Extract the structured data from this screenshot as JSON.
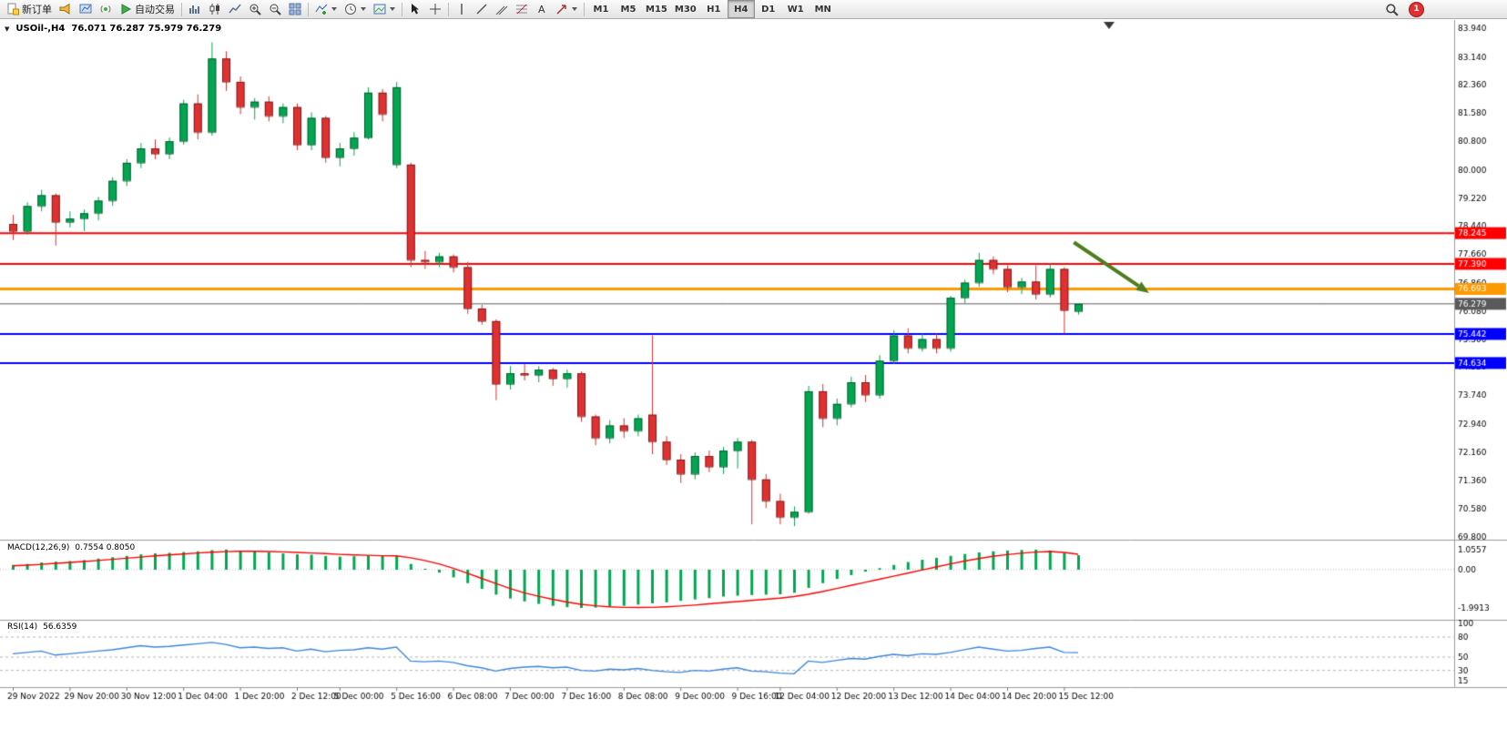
{
  "toolbar": {
    "new_order_label": "新订单",
    "autotrading_label": "自动交易",
    "timeframes": [
      "M1",
      "M5",
      "M15",
      "M30",
      "H1",
      "H4",
      "D1",
      "W1",
      "MN"
    ],
    "active_timeframe": "H4",
    "notification_count": "1",
    "icon_names": [
      "new-order-icon",
      "announcement-icon",
      "market-watch-icon",
      "signal-icon",
      "autotrading-play-icon",
      "bar-chart-icon",
      "candlestick-chart-icon",
      "line-chart-icon",
      "zoom-in-icon",
      "zoom-out-icon",
      "tile-windows-icon",
      "indicators-icon",
      "periods-icon",
      "templates-icon",
      "cursor-icon",
      "crosshair-icon",
      "vertical-line-icon",
      "trendline-icon",
      "channel-icon",
      "fibonacci-icon",
      "text-tool-icon",
      "arrows-icon",
      "search-icon",
      "notification-badge"
    ]
  },
  "chart_header": {
    "collapse_glyph": "▼",
    "symbol_period": "USOil-,H4",
    "ohlc": "76.071 76.287 75.979 76.279"
  },
  "indicator_labels": {
    "macd": "MACD(12,26,9)",
    "macd_values": "0.7554 0.8050",
    "rsi": "RSI(14)",
    "rsi_value": "56.6359"
  },
  "chart_data": [
    {
      "type": "candlestick",
      "symbol": "USOil-",
      "timeframe": "H4",
      "current_bar": {
        "open": 76.071,
        "high": 76.287,
        "low": 75.979,
        "close": 76.279
      },
      "ylim": [
        69.8,
        83.94
      ],
      "y_ticks": [
        "83.940",
        "83.140",
        "82.360",
        "81.580",
        "80.800",
        "80.000",
        "79.220",
        "78.440",
        "77.660",
        "76.860",
        "76.080",
        "75.300",
        "74.520",
        "73.740",
        "72.940",
        "72.160",
        "71.360",
        "70.580",
        "69.800"
      ],
      "x_labels": [
        {
          "i": 0,
          "label": "29 Nov 2022"
        },
        {
          "i": 4,
          "label": "29 Nov 20:00"
        },
        {
          "i": 8,
          "label": "30 Nov 12:00"
        },
        {
          "i": 12,
          "label": "1 Dec 04:00"
        },
        {
          "i": 16,
          "label": "1 Dec 20:00"
        },
        {
          "i": 20,
          "label": "2 Dec 12:00"
        },
        {
          "i": 23,
          "label": "5 Dec 00:00"
        },
        {
          "i": 27,
          "label": "5 Dec 16:00"
        },
        {
          "i": 31,
          "label": "6 Dec 08:00"
        },
        {
          "i": 35,
          "label": "7 Dec 00:00"
        },
        {
          "i": 39,
          "label": "7 Dec 16:00"
        },
        {
          "i": 43,
          "label": "8 Dec 08:00"
        },
        {
          "i": 47,
          "label": "9 Dec 00:00"
        },
        {
          "i": 51,
          "label": "9 Dec 16:00"
        },
        {
          "i": 54,
          "label": "12 Dec 04:00"
        },
        {
          "i": 58,
          "label": "12 Dec 20:00"
        },
        {
          "i": 62,
          "label": "13 Dec 12:00"
        },
        {
          "i": 66,
          "label": "14 Dec 04:00"
        },
        {
          "i": 70,
          "label": "14 Dec 20:00"
        },
        {
          "i": 74,
          "label": "15 Dec 12:00"
        }
      ],
      "up_color": "#00a651",
      "down_color": "#e13030",
      "hlines": [
        {
          "price": 78.245,
          "color": "#ff0000",
          "width": 2,
          "label": "78.245"
        },
        {
          "price": 77.39,
          "color": "#ff0000",
          "width": 2,
          "label": "77.390"
        },
        {
          "price": 76.693,
          "color": "#ff9900",
          "width": 3,
          "label": "76.693"
        },
        {
          "price": 76.279,
          "color": "#5a5a5a",
          "width": 1,
          "label": "76.279"
        },
        {
          "price": 75.442,
          "color": "#0000ff",
          "width": 2,
          "label": "75.442"
        },
        {
          "price": 74.634,
          "color": "#0000ff",
          "width": 2,
          "label": "74.634"
        }
      ],
      "trend_arrow": {
        "from_i": 74.7,
        "from_price": 77.99,
        "to_i": 80.0,
        "to_price": 76.58,
        "color": "#4e7d1f"
      },
      "candles": [
        [
          78.5,
          78.75,
          78.05,
          78.3
        ],
        [
          78.3,
          79.1,
          78.2,
          79.0
        ],
        [
          79.0,
          79.45,
          78.85,
          79.3
        ],
        [
          79.3,
          79.35,
          77.9,
          78.55
        ],
        [
          78.55,
          78.85,
          78.4,
          78.65
        ],
        [
          78.65,
          78.9,
          78.3,
          78.8
        ],
        [
          78.8,
          79.25,
          78.6,
          79.15
        ],
        [
          79.15,
          79.8,
          79.0,
          79.7
        ],
        [
          79.7,
          80.3,
          79.55,
          80.2
        ],
        [
          80.2,
          80.75,
          80.05,
          80.6
        ],
        [
          80.6,
          80.85,
          80.3,
          80.45
        ],
        [
          80.45,
          80.9,
          80.3,
          80.8
        ],
        [
          80.8,
          81.95,
          80.7,
          81.85
        ],
        [
          81.85,
          82.1,
          80.85,
          81.05
        ],
        [
          81.05,
          83.55,
          80.95,
          83.1
        ],
        [
          83.1,
          83.3,
          82.2,
          82.45
        ],
        [
          82.45,
          82.6,
          81.55,
          81.75
        ],
        [
          81.75,
          82.0,
          81.4,
          81.9
        ],
        [
          81.9,
          82.05,
          81.35,
          81.5
        ],
        [
          81.5,
          81.85,
          81.3,
          81.75
        ],
        [
          81.75,
          81.85,
          80.55,
          80.7
        ],
        [
          80.7,
          81.6,
          80.55,
          81.45
        ],
        [
          81.45,
          81.5,
          80.2,
          80.35
        ],
        [
          80.35,
          80.75,
          80.1,
          80.6
        ],
        [
          80.6,
          81.05,
          80.4,
          80.9
        ],
        [
          80.9,
          82.3,
          80.85,
          82.15
        ],
        [
          82.15,
          82.25,
          81.35,
          81.55
        ],
        [
          80.15,
          82.45,
          80.05,
          82.3
        ],
        [
          80.15,
          80.2,
          77.3,
          77.5
        ],
        [
          77.5,
          77.75,
          77.25,
          77.45
        ],
        [
          77.45,
          77.7,
          77.3,
          77.6
        ],
        [
          77.6,
          77.65,
          77.15,
          77.3
        ],
        [
          77.3,
          77.45,
          76.0,
          76.15
        ],
        [
          76.15,
          76.25,
          75.7,
          75.8
        ],
        [
          75.8,
          75.85,
          73.6,
          74.05
        ],
        [
          74.05,
          74.55,
          73.9,
          74.35
        ],
        [
          74.35,
          74.6,
          74.15,
          74.3
        ],
        [
          74.3,
          74.55,
          74.1,
          74.45
        ],
        [
          74.45,
          74.5,
          74.0,
          74.2
        ],
        [
          74.2,
          74.45,
          73.95,
          74.35
        ],
        [
          74.35,
          74.4,
          73.0,
          73.15
        ],
        [
          73.15,
          73.2,
          72.35,
          72.55
        ],
        [
          72.55,
          73.05,
          72.4,
          72.9
        ],
        [
          72.9,
          73.1,
          72.55,
          72.75
        ],
        [
          72.75,
          73.2,
          72.6,
          73.1
        ],
        [
          73.2,
          75.4,
          72.1,
          72.45
        ],
        [
          72.45,
          72.6,
          71.8,
          71.95
        ],
        [
          71.95,
          72.1,
          71.3,
          71.55
        ],
        [
          71.55,
          72.15,
          71.4,
          72.05
        ],
        [
          72.05,
          72.2,
          71.6,
          71.75
        ],
        [
          71.75,
          72.3,
          71.55,
          72.2
        ],
        [
          72.2,
          72.55,
          71.7,
          72.45
        ],
        [
          72.45,
          72.5,
          70.15,
          71.4
        ],
        [
          71.4,
          71.55,
          70.6,
          70.8
        ],
        [
          70.8,
          71.0,
          70.15,
          70.35
        ],
        [
          70.35,
          70.65,
          70.1,
          70.5
        ],
        [
          70.5,
          74.0,
          70.45,
          73.85
        ],
        [
          73.85,
          74.05,
          72.85,
          73.1
        ],
        [
          73.1,
          73.65,
          72.9,
          73.5
        ],
        [
          73.5,
          74.25,
          73.4,
          74.1
        ],
        [
          74.1,
          74.3,
          73.55,
          73.75
        ],
        [
          73.75,
          74.85,
          73.65,
          74.7
        ],
        [
          74.7,
          75.55,
          74.6,
          75.4
        ],
        [
          75.4,
          75.6,
          74.9,
          75.05
        ],
        [
          75.05,
          75.45,
          74.95,
          75.3
        ],
        [
          75.3,
          75.45,
          74.9,
          75.05
        ],
        [
          75.05,
          76.5,
          74.95,
          76.45
        ],
        [
          76.45,
          76.95,
          76.3,
          76.87
        ],
        [
          76.87,
          77.7,
          76.75,
          77.5
        ],
        [
          77.5,
          77.6,
          77.1,
          77.25
        ],
        [
          77.25,
          77.35,
          76.6,
          76.75
        ],
        [
          76.75,
          77.0,
          76.55,
          76.9
        ],
        [
          76.9,
          77.35,
          76.4,
          76.55
        ],
        [
          76.55,
          77.4,
          76.45,
          77.25
        ],
        [
          77.25,
          77.3,
          75.45,
          76.1
        ],
        [
          76.071,
          76.287,
          75.979,
          76.279
        ]
      ]
    },
    {
      "type": "bar",
      "name": "MACD",
      "params": "12,26,9",
      "main_value": 0.7554,
      "signal_value": 0.805,
      "ylim": [
        -1.9913,
        1.0557
      ],
      "y_ticks": [
        "1.0557",
        "0.00",
        "-1.9913"
      ],
      "hist_color": "#00a651",
      "signal_color": "#ff0000",
      "histogram": [
        0.25,
        0.3,
        0.38,
        0.42,
        0.45,
        0.5,
        0.58,
        0.65,
        0.72,
        0.8,
        0.85,
        0.88,
        0.92,
        0.96,
        1.02,
        1.05,
        1.0,
        0.95,
        0.9,
        0.85,
        0.8,
        0.78,
        0.72,
        0.68,
        0.7,
        0.74,
        0.72,
        0.75,
        0.3,
        0.05,
        -0.15,
        -0.4,
        -0.7,
        -1.0,
        -1.3,
        -1.5,
        -1.65,
        -1.78,
        -1.88,
        -1.95,
        -1.99,
        -1.97,
        -1.93,
        -1.88,
        -1.82,
        -1.75,
        -1.7,
        -1.62,
        -1.55,
        -1.48,
        -1.4,
        -1.35,
        -1.32,
        -1.3,
        -1.28,
        -1.2,
        -0.95,
        -0.7,
        -0.48,
        -0.28,
        -0.1,
        0.08,
        0.25,
        0.4,
        0.52,
        0.62,
        0.72,
        0.82,
        0.9,
        0.96,
        1.0,
        1.03,
        1.05,
        1.0,
        0.88,
        0.7554
      ],
      "signal": [
        0.2,
        0.24,
        0.28,
        0.33,
        0.38,
        0.43,
        0.48,
        0.54,
        0.6,
        0.66,
        0.72,
        0.77,
        0.82,
        0.87,
        0.91,
        0.94,
        0.96,
        0.96,
        0.95,
        0.93,
        0.9,
        0.87,
        0.84,
        0.8,
        0.77,
        0.75,
        0.73,
        0.72,
        0.62,
        0.48,
        0.3,
        0.08,
        -0.18,
        -0.45,
        -0.72,
        -0.98,
        -1.2,
        -1.38,
        -1.54,
        -1.68,
        -1.8,
        -1.88,
        -1.93,
        -1.96,
        -1.97,
        -1.96,
        -1.93,
        -1.89,
        -1.84,
        -1.78,
        -1.72,
        -1.66,
        -1.6,
        -1.54,
        -1.48,
        -1.4,
        -1.28,
        -1.14,
        -0.98,
        -0.82,
        -0.66,
        -0.5,
        -0.34,
        -0.18,
        -0.02,
        0.14,
        0.3,
        0.45,
        0.58,
        0.7,
        0.79,
        0.86,
        0.92,
        0.95,
        0.9,
        0.805
      ]
    },
    {
      "type": "line",
      "name": "RSI",
      "params": "14",
      "last_value": 56.6359,
      "ylim": [
        0,
        100
      ],
      "y_ticks": [
        "100",
        "80",
        "50",
        "30",
        "15"
      ],
      "levels": [
        80,
        50,
        30
      ],
      "line_color": "#3d85d8",
      "values": [
        55,
        57,
        59,
        53,
        55,
        57,
        59,
        61,
        64,
        67,
        65,
        66,
        68,
        70,
        72,
        69,
        64,
        65,
        63,
        64,
        59,
        62,
        58,
        60,
        61,
        64,
        62,
        65,
        44,
        43,
        44,
        42,
        37,
        34,
        29,
        33,
        35,
        36,
        34,
        35,
        30,
        29,
        32,
        31,
        33,
        30,
        28,
        27,
        30,
        29,
        32,
        34,
        29,
        28,
        26,
        25,
        44,
        42,
        45,
        48,
        47,
        51,
        54,
        52,
        55,
        54,
        57,
        61,
        65,
        62,
        59,
        60,
        63,
        65,
        57,
        56.64
      ]
    }
  ]
}
